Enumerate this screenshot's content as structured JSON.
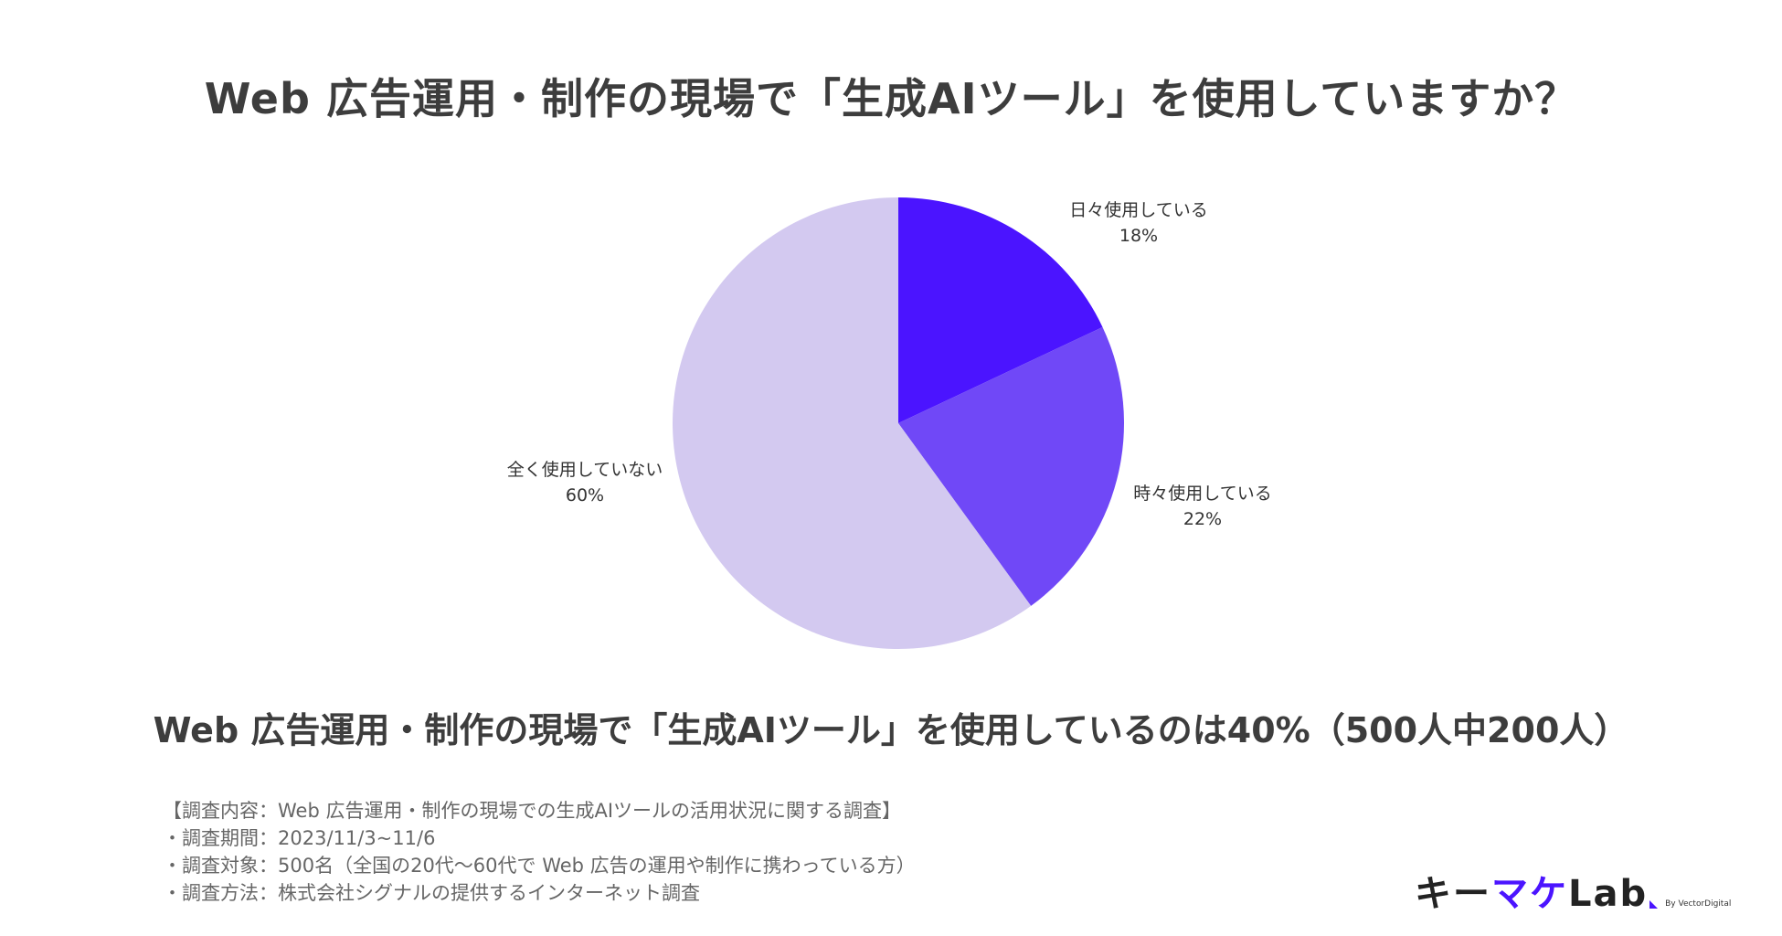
{
  "title": "Web 広告運用・制作の現場で「生成AIツール」を使用していますか？",
  "chart_data": {
    "type": "pie",
    "title": "Web 広告運用・制作の現場で「生成AIツール」を使用していますか？",
    "start_angle_deg": 0,
    "direction": "clockwise",
    "slices": [
      {
        "label": "日々使用している",
        "value": 18,
        "value_label": "18%",
        "color": "#4b14ff"
      },
      {
        "label": "時々使用している",
        "value": 22,
        "value_label": "22%",
        "color": "#7048f7"
      },
      {
        "label": "全く使用していない",
        "value": 60,
        "value_label": "60%",
        "color": "#d3c9f0"
      }
    ]
  },
  "conclusion": "Web 広告運用・制作の現場で「生成AIツール」を使用しているのは40%（500人中200人）",
  "notes": [
    "【調査内容：Web 広告運用・制作の現場での生成AIツールの活用状況に関する調査】",
    "・調査期間：2023/11/3~11/6",
    "・調査対象：500名（全国の20代〜60代で Web 広告の運用や制作に携わっている方）",
    "・調査方法：株式会社シグナルの提供するインターネット調査"
  ],
  "logo": {
    "part1": "キー",
    "part2": "マケ",
    "part3": "Lab",
    "byline": "By VectorDigital"
  }
}
